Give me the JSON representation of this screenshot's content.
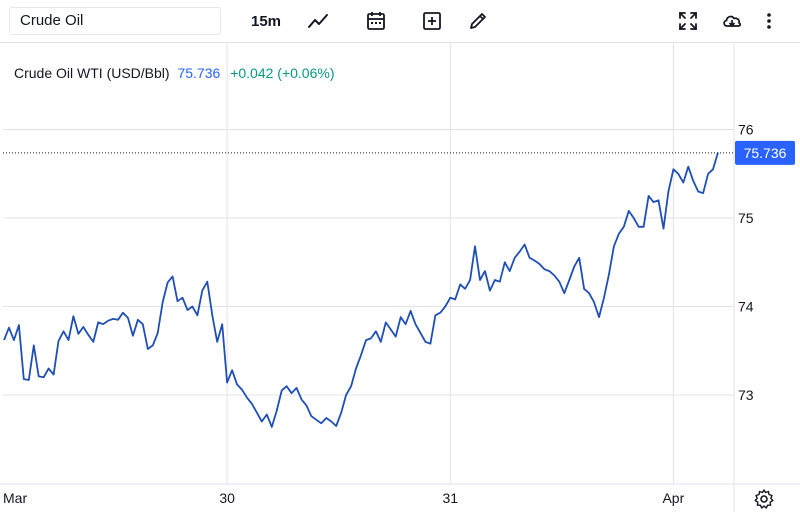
{
  "toolbar": {
    "symbol": "Crude Oil",
    "interval": "15m",
    "icons": [
      "line-chart-icon",
      "calendar-icon",
      "add-icon",
      "draw-icon",
      "fullscreen-icon",
      "download-icon",
      "more-icon"
    ]
  },
  "legend": {
    "name": "Crude Oil WTI (USD/Bbl)",
    "price": "75.736",
    "change": "+0.042 (+0.06%)",
    "change_color": "#089981",
    "price_color": "#2962ff"
  },
  "chart_data": {
    "type": "line",
    "title": "Crude Oil WTI (USD/Bbl)",
    "line_color": "#1f4fb5",
    "last_price": 75.736,
    "last_price_label": "75.736",
    "y_range": [
      72.0,
      76.7
    ],
    "y_ticks": [
      73,
      74,
      75,
      76
    ],
    "x_ticks": [
      {
        "label": "Mar",
        "at": 0
      },
      {
        "label": "30",
        "at": 45
      },
      {
        "label": "31",
        "at": 90
      },
      {
        "label": "Apr",
        "at": 135
      }
    ],
    "x_count": 145,
    "grid": true,
    "values": [
      73.62,
      73.76,
      73.62,
      73.79,
      73.18,
      73.17,
      73.56,
      73.21,
      73.2,
      73.3,
      73.23,
      73.61,
      73.72,
      73.62,
      73.89,
      73.69,
      73.77,
      73.68,
      73.6,
      73.82,
      73.8,
      73.84,
      73.86,
      73.85,
      73.93,
      73.87,
      73.67,
      73.85,
      73.8,
      73.52,
      73.56,
      73.7,
      74.05,
      74.27,
      74.34,
      74.06,
      74.1,
      73.96,
      74.0,
      73.9,
      74.18,
      74.28,
      73.9,
      73.6,
      73.8,
      73.14,
      73.28,
      73.12,
      73.06,
      72.97,
      72.9,
      72.8,
      72.7,
      72.78,
      72.64,
      72.82,
      73.05,
      73.1,
      73.02,
      73.08,
      72.95,
      72.88,
      72.76,
      72.72,
      72.68,
      72.74,
      72.7,
      72.65,
      72.8,
      73.0,
      73.1,
      73.3,
      73.45,
      73.62,
      73.64,
      73.72,
      73.6,
      73.82,
      73.74,
      73.66,
      73.88,
      73.8,
      73.95,
      73.8,
      73.7,
      73.6,
      73.58,
      73.9,
      73.93,
      74.0,
      74.1,
      74.08,
      74.25,
      74.2,
      74.3,
      74.68,
      74.3,
      74.4,
      74.18,
      74.3,
      74.28,
      74.5,
      74.4,
      74.55,
      74.62,
      74.7,
      74.55,
      74.52,
      74.48,
      74.42,
      74.4,
      74.35,
      74.28,
      74.15,
      74.3,
      74.45,
      74.55,
      74.2,
      74.15,
      74.05,
      73.88,
      74.1,
      74.36,
      74.68,
      74.82,
      74.9,
      75.08,
      75.0,
      74.9,
      74.9,
      75.25,
      75.18,
      75.2,
      74.88,
      75.3,
      75.55,
      75.5,
      75.4,
      75.58,
      75.42,
      75.3,
      75.28,
      75.5,
      75.55,
      75.74
    ]
  }
}
